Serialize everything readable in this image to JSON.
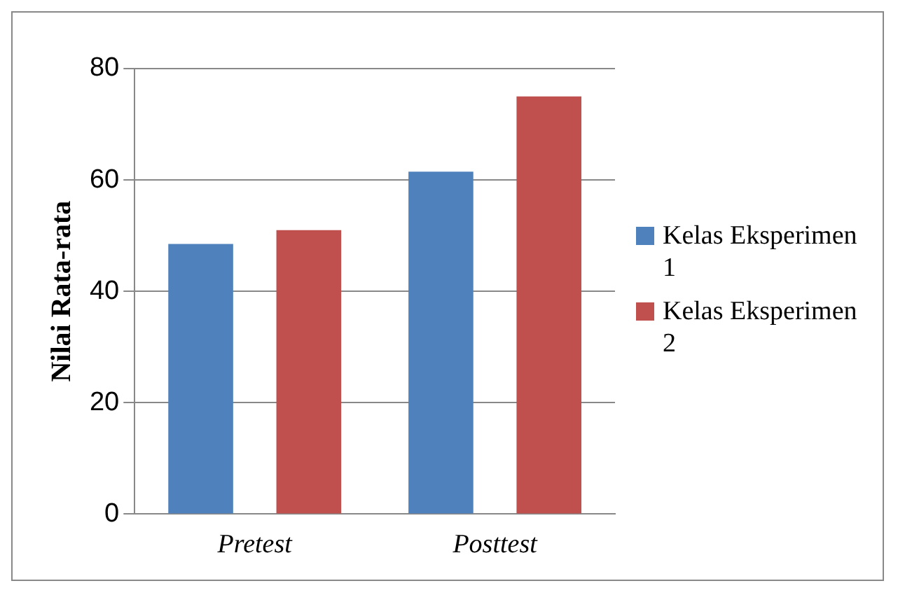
{
  "chart_data": {
    "type": "bar",
    "ylabel": "Nilai Rata-rata",
    "categories": [
      "Pretest",
      "Posttest"
    ],
    "series": [
      {
        "name": "Kelas Eksperimen 1",
        "color": "#4f81bd",
        "values": [
          48.5,
          61.5
        ]
      },
      {
        "name": "Kelas Eksperimen 2",
        "color": "#c0504d",
        "values": [
          51,
          75
        ]
      }
    ],
    "ylim": [
      0,
      80
    ],
    "yticks": [
      0,
      20,
      40,
      60,
      80
    ],
    "grid": "y",
    "legend": "right"
  }
}
